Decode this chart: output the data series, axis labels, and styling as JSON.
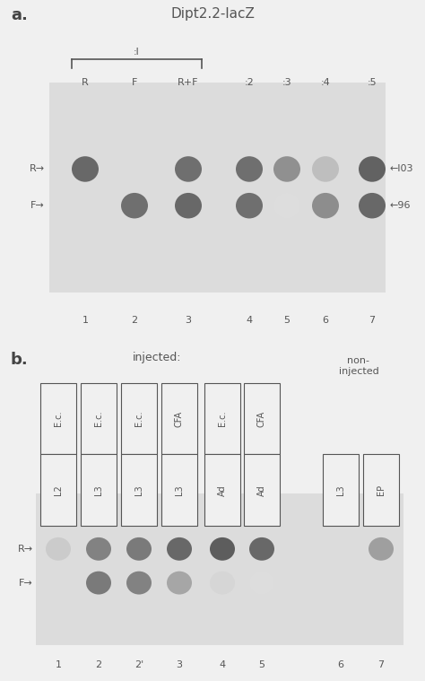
{
  "fig_bg": "#f0f0f0",
  "panel_bg": "#f0f0f0",
  "gel_bg": "#e8e8e8",
  "panel_a": {
    "title": "Dipt2.2-lacZ",
    "bracket_label": ":l",
    "col_labels": [
      "R",
      "F",
      "R+F",
      ":2",
      ":3",
      ":4",
      ":5"
    ],
    "lane_numbers": [
      "1",
      "2",
      "3",
      "4",
      "5",
      "6",
      "7"
    ],
    "R_intensities": [
      0.82,
      0.0,
      0.78,
      0.78,
      0.6,
      0.35,
      0.85
    ],
    "F_intensities": [
      0.0,
      0.78,
      0.82,
      0.78,
      0.18,
      0.62,
      0.82
    ]
  },
  "panel_b": {
    "injected_label": "injected:",
    "non_injected_label": "non-\ninjected",
    "row1_labels": [
      "E.c.",
      "E.c.",
      "E.c.",
      "CFA",
      "E.c.",
      "CFA"
    ],
    "row2_labels": [
      "L2",
      "L3",
      "L3",
      "L3",
      "Ad",
      "Ad"
    ],
    "ni_labels": [
      "L3",
      "EP"
    ],
    "lane_numbers": [
      "1",
      "2",
      "2'",
      "3",
      "4",
      "5",
      "6",
      "7"
    ],
    "R_intensities": [
      0.28,
      0.68,
      0.72,
      0.82,
      0.88,
      0.82,
      0.0,
      0.52
    ],
    "F_intensities": [
      0.0,
      0.72,
      0.68,
      0.48,
      0.22,
      0.18,
      0.0,
      0.0
    ]
  }
}
